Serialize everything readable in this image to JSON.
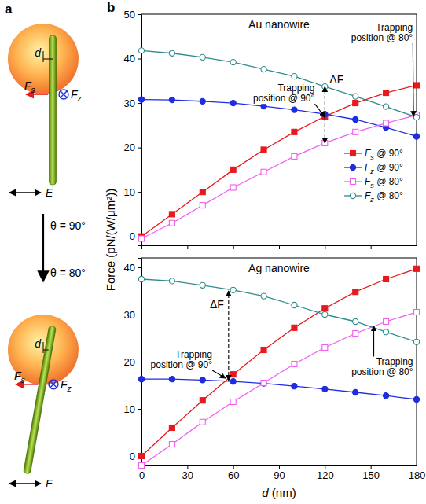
{
  "panel_label": "b",
  "diagram": {
    "panel_label": "a",
    "upper": {
      "d": "d",
      "fs": "Fs",
      "fz": "Fz",
      "e": "E"
    },
    "transition": [
      "θ = 90°",
      "θ = 80°"
    ],
    "lower": {
      "d": "d",
      "fs": "Fs",
      "fz": "Fz",
      "e": "E"
    }
  },
  "chart_data": [
    {
      "type": "line",
      "title": "Au nanowire",
      "ylabel": "Force (pN/(W/μm²))",
      "x": [
        0,
        20,
        40,
        60,
        80,
        100,
        120,
        140,
        160,
        180
      ],
      "xlim": [
        0,
        180
      ],
      "xticks": [
        0,
        30,
        60,
        90,
        120,
        150,
        180
      ],
      "ylim": [
        -2,
        50
      ],
      "yticks": [
        0,
        10,
        20,
        30,
        40,
        50
      ],
      "tick_labels": "y",
      "legend": "right",
      "series": [
        {
          "name": "Fs @ 90°",
          "color": "#e8191e",
          "marker": "square",
          "values": [
            0,
            5,
            10,
            15,
            19.5,
            23.5,
            27,
            30,
            32.3,
            34
          ]
        },
        {
          "name": "Fz @ 90°",
          "color": "#1f2de0",
          "marker": "circle",
          "values": [
            30.8,
            30.7,
            30.4,
            30,
            29.3,
            28.5,
            27.5,
            26.3,
            24.5,
            22.5
          ]
        },
        {
          "name": "Fs @ 80°",
          "color": "#f25ef2",
          "marker": "open-square",
          "values": [
            -0.5,
            3,
            7,
            11,
            14.5,
            18,
            21,
            23.5,
            25.5,
            27.3
          ]
        },
        {
          "name": "Fz @ 80°",
          "color": "#2e8b8b",
          "marker": "open-circle",
          "values": [
            41.8,
            41.2,
            40.3,
            39.2,
            37.6,
            36,
            33.7,
            31.5,
            29.2,
            26.8
          ]
        }
      ],
      "annotations": [
        {
          "text": "Trapping position @ 90°",
          "x": 120,
          "y": 26.8
        },
        {
          "text": "Trapping position @ 80°",
          "x": 178,
          "y": 27
        }
      ],
      "delta": {
        "text": "ΔF",
        "x": 120,
        "y": [
          21,
          33.7
        ]
      }
    },
    {
      "type": "line",
      "title": "Ag nanowire",
      "xlabel": "d (nm)",
      "x": [
        0,
        20,
        40,
        60,
        80,
        100,
        120,
        140,
        160,
        180
      ],
      "xlim": [
        0,
        180
      ],
      "xticks": [
        0,
        30,
        60,
        90,
        120,
        150,
        180
      ],
      "ylim": [
        -2,
        42
      ],
      "yticks": [
        0,
        10,
        20,
        30,
        40
      ],
      "series": [
        {
          "color": "#e8191e",
          "marker": "square",
          "values": [
            0,
            6,
            11.8,
            17.3,
            22.5,
            27.2,
            31.3,
            34.8,
            37.5,
            39.7
          ]
        },
        {
          "color": "#1f2de0",
          "marker": "circle",
          "values": [
            16.3,
            16.3,
            16.1,
            15.8,
            15.4,
            14.8,
            14.2,
            13.5,
            12.8,
            12
          ]
        },
        {
          "color": "#f25ef2",
          "marker": "open-square",
          "values": [
            -2,
            2.5,
            7.2,
            11.5,
            15.5,
            19.5,
            23,
            26,
            28.5,
            30.5
          ]
        },
        {
          "color": "#2e8b8b",
          "marker": "open-circle",
          "values": [
            37.5,
            37.1,
            36.2,
            35.2,
            33.9,
            32,
            30,
            28.5,
            26.3,
            24.2
          ]
        }
      ],
      "annotations": [
        {
          "text": "Trapping position @ 90°",
          "x": 55,
          "y": 16.5
        },
        {
          "text": "Trapping position @ 80°",
          "x": 152,
          "y": 27.6
        }
      ],
      "delta": {
        "text": "ΔF",
        "x": 57,
        "y": [
          16,
          35
        ]
      }
    }
  ]
}
